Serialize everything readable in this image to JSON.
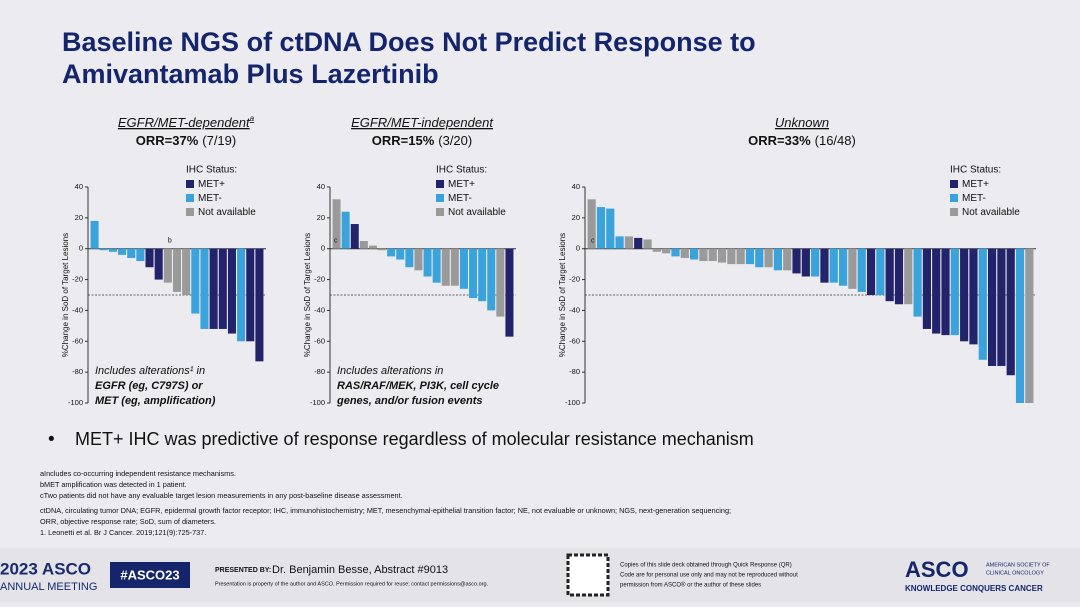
{
  "slide": {
    "title_lines": [
      "Baseline NGS of ctDNA Does Not Predict Response to",
      "Amivantamab Plus Lazertinib"
    ],
    "bullet": "MET+ IHC was predictive of response regardless of molecular resistance mechanism",
    "footnotes": [
      "aIncludes co-occurring independent resistance mechanisms.",
      "bMET amplification was detected in 1 patient.",
      "cTwo patients did not have any evaluable target lesion measurements in any post-baseline disease assessment.",
      "ctDNA, circulating tumor DNA; EGFR, epidermal growth factor receptor; IHC, immunohistochemistry; MET, mesenchymal-epithelial transition factor; NE, not evaluable or unknown; NGS, next-generation sequencing;",
      "ORR, objective response rate; SoD, sum of diameters.",
      "1. Leonetti et al. Br J Cancer. 2019;121(9):725-737."
    ],
    "footer": {
      "meeting_year": "2023 ASCO",
      "meeting": "ANNUAL MEETING",
      "hashtag": "#ASCO23",
      "presented_by": "PRESENTED BY:",
      "presenter": "Dr. Benjamin Besse, Abstract #9013",
      "property": "Presentation is property of the author and ASCO. Permission required for reuse; contact permissions@asco.org.",
      "copies": [
        "Copies of this slide deck obtained through Quick Response (QR)",
        "Code are for personal use only and may not be reproduced without",
        "permission from ASCO® or the author of these slides"
      ],
      "logo": "ASCO",
      "society": [
        "AMERICAN SOCIETY OF",
        "CLINICAL ONCOLOGY"
      ],
      "tagline": "KNOWLEDGE CONQUERS CANCER"
    }
  },
  "chart_data": [
    {
      "type": "bar",
      "heading": "EGFR/MET-dependent",
      "heading_sup": "a",
      "orr": "ORR=37%",
      "orr_detail": "(7/19)",
      "y_label": "%Change in SoD of Target Lesions",
      "ylim": [
        -100,
        40
      ],
      "yticks": [
        40,
        20,
        0,
        -20,
        -40,
        -60,
        -80,
        -100
      ],
      "reference_line": -30,
      "legend": {
        "title": "IHC Status:",
        "items": [
          {
            "name": "MET+",
            "color": "#23236b"
          },
          {
            "name": "MET-",
            "color": "#3aa3db"
          },
          {
            "name": "Not available",
            "color": "#9a9a9a"
          }
        ]
      },
      "annotations": [
        "b"
      ],
      "note_lines": [
        "Includes alterations¹ in",
        "EGFR (eg, C797S) or",
        "MET (eg, amplification)"
      ],
      "values": [
        18,
        -1,
        -2,
        -4,
        -6,
        -8,
        -12,
        -20,
        -22,
        -28,
        -30,
        -42,
        -52,
        -52,
        -52,
        -55,
        -60,
        -60,
        -73
      ],
      "colors": [
        "#3aa3db",
        "#3aa3db",
        "#3aa3db",
        "#3aa3db",
        "#3aa3db",
        "#3aa3db",
        "#23236b",
        "#23236b",
        "#9a9a9a",
        "#9a9a9a",
        "#9a9a9a",
        "#3aa3db",
        "#3aa3db",
        "#23236b",
        "#23236b",
        "#23236b",
        "#3aa3db",
        "#23236b",
        "#23236b"
      ]
    },
    {
      "type": "bar",
      "heading": "EGFR/MET-independent",
      "orr": "ORR=15%",
      "orr_detail": "(3/20)",
      "y_label": "%Change in SoD of Target Lesions",
      "ylim": [
        -100,
        40
      ],
      "yticks": [
        40,
        20,
        0,
        -20,
        -40,
        -60,
        -80,
        -100
      ],
      "reference_line": -30,
      "legend": {
        "title": "IHC Status:",
        "items": [
          {
            "name": "MET+",
            "color": "#23236b"
          },
          {
            "name": "MET-",
            "color": "#3aa3db"
          },
          {
            "name": "Not available",
            "color": "#9a9a9a"
          }
        ]
      },
      "annotations": [
        "c"
      ],
      "note_lines": [
        "Includes alterations in",
        "RAS/RAF/MEK, PI3K, cell cycle",
        "genes, and/or fusion events"
      ],
      "values": [
        32,
        24,
        16,
        5,
        2,
        -1,
        -5,
        -7,
        -12,
        -14,
        -18,
        -22,
        -24,
        -24,
        -26,
        -32,
        -34,
        -40,
        -44,
        -57
      ],
      "colors": [
        "#9a9a9a",
        "#3aa3db",
        "#23236b",
        "#9a9a9a",
        "#9a9a9a",
        "#9a9a9a",
        "#3aa3db",
        "#3aa3db",
        "#3aa3db",
        "#9a9a9a",
        "#3aa3db",
        "#3aa3db",
        "#9a9a9a",
        "#9a9a9a",
        "#3aa3db",
        "#3aa3db",
        "#3aa3db",
        "#3aa3db",
        "#9a9a9a",
        "#23236b"
      ]
    },
    {
      "type": "bar",
      "heading": "Unknown",
      "orr": "ORR=33%",
      "orr_detail": "(16/48)",
      "y_label": "%Change in SoD of Target Lesions",
      "ylim": [
        -100,
        40
      ],
      "yticks": [
        40,
        20,
        0,
        -20,
        -40,
        -60,
        -80,
        -100
      ],
      "reference_line": -30,
      "legend": {
        "title": "IHC Status:",
        "items": [
          {
            "name": "MET+",
            "color": "#23236b"
          },
          {
            "name": "MET-",
            "color": "#3aa3db"
          },
          {
            "name": "Not available",
            "color": "#9a9a9a"
          }
        ]
      },
      "annotations": [
        "c"
      ],
      "values": [
        32,
        27,
        26,
        8,
        8,
        7,
        6,
        -2,
        -3,
        -5,
        -6,
        -7,
        -8,
        -8,
        -9,
        -10,
        -10,
        -10,
        -12,
        -12,
        -14,
        -14,
        -16,
        -18,
        -18,
        -22,
        -22,
        -24,
        -26,
        -28,
        -30,
        -30,
        -34,
        -36,
        -36,
        -44,
        -52,
        -55,
        -56,
        -56,
        -60,
        -62,
        -72,
        -76,
        -76,
        -82,
        -100,
        -100
      ],
      "colors": [
        "#9a9a9a",
        "#3aa3db",
        "#3aa3db",
        "#3aa3db",
        "#9a9a9a",
        "#23236b",
        "#9a9a9a",
        "#9a9a9a",
        "#9a9a9a",
        "#3aa3db",
        "#9a9a9a",
        "#3aa3db",
        "#9a9a9a",
        "#9a9a9a",
        "#9a9a9a",
        "#9a9a9a",
        "#9a9a9a",
        "#3aa3db",
        "#3aa3db",
        "#9a9a9a",
        "#3aa3db",
        "#9a9a9a",
        "#23236b",
        "#23236b",
        "#3aa3db",
        "#23236b",
        "#3aa3db",
        "#3aa3db",
        "#9a9a9a",
        "#3aa3db",
        "#23236b",
        "#3aa3db",
        "#23236b",
        "#23236b",
        "#9a9a9a",
        "#3aa3db",
        "#23236b",
        "#23236b",
        "#23236b",
        "#3aa3db",
        "#23236b",
        "#23236b",
        "#3aa3db",
        "#23236b",
        "#23236b",
        "#23236b",
        "#3aa3db",
        "#9a9a9a"
      ]
    }
  ]
}
